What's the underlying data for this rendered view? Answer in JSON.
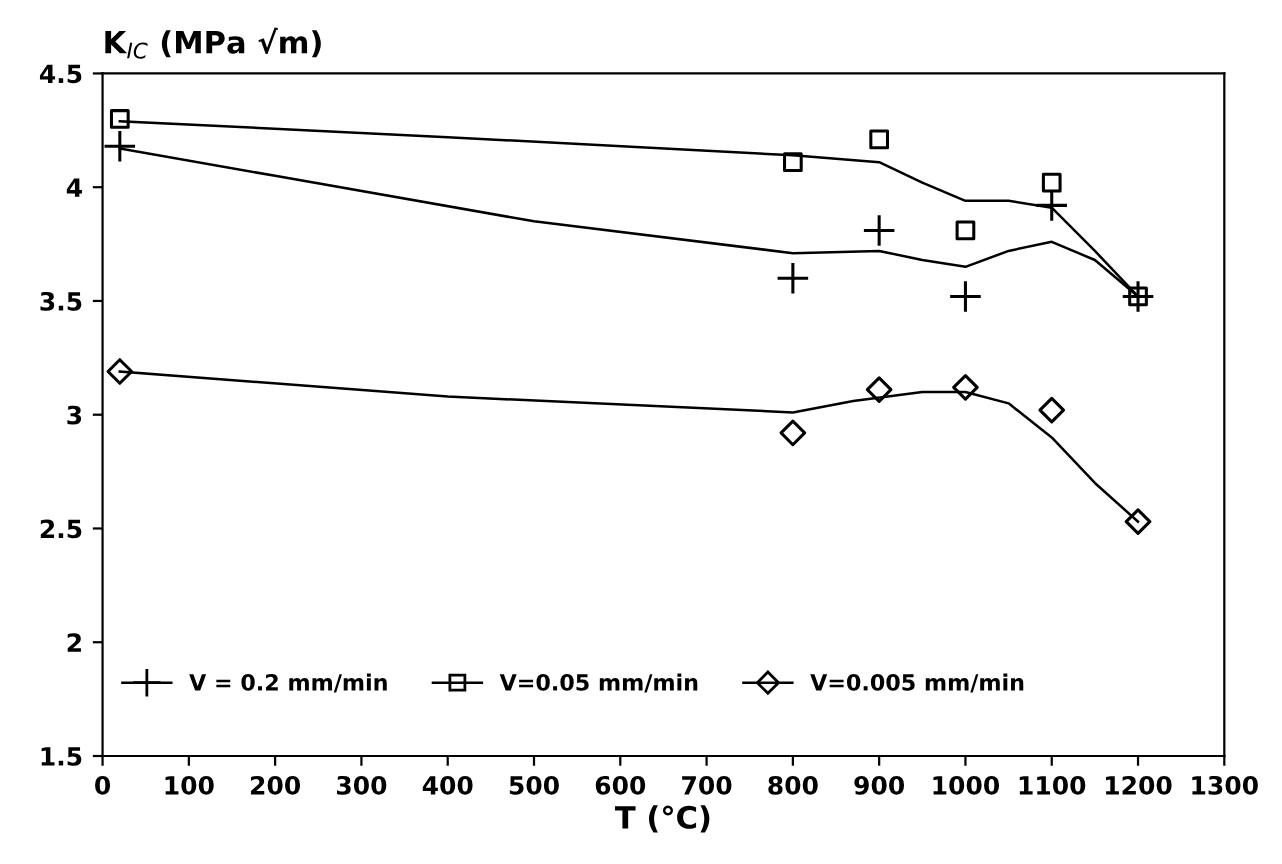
{
  "chart_data": {
    "type": "scatter",
    "ylabel": "K$_{IC}$ (MPa √m)",
    "xlabel": "T (°C)",
    "xlim": [
      0,
      1300
    ],
    "xticks": [
      0,
      100,
      200,
      300,
      400,
      500,
      600,
      700,
      800,
      900,
      1000,
      1100,
      1200,
      1300
    ],
    "ylim": [
      1.5,
      4.5
    ],
    "yticks": [
      1.5,
      2,
      2.5,
      3,
      3.5,
      4,
      4.5
    ],
    "grid": false,
    "legend": "bottom",
    "series": [
      {
        "name": "V = 0.2 mm/min",
        "marker": "cross",
        "color": "#000000",
        "x": [
          20,
          800,
          900,
          1000,
          1100,
          1200
        ],
        "values": [
          4.18,
          3.6,
          3.81,
          3.52,
          3.92,
          3.52
        ]
      },
      {
        "name": "V=0.05 mm/min",
        "marker": "square",
        "color": "#000000",
        "x": [
          20,
          800,
          900,
          1000,
          1100,
          1200
        ],
        "values": [
          4.3,
          4.11,
          4.21,
          3.81,
          4.02,
          3.52
        ]
      },
      {
        "name": "V=0.005 mm/min",
        "marker": "diamond",
        "color": "#000000",
        "x": [
          20,
          800,
          900,
          1000,
          1100,
          1200
        ],
        "values": [
          3.19,
          2.92,
          3.11,
          3.12,
          3.02,
          2.53
        ]
      },
      {
        "type": "line",
        "marker": "none",
        "color": "#000000",
        "x": [
          20,
          200,
          500,
          800,
          900,
          950,
          1000,
          1050,
          1100,
          1150,
          1200
        ],
        "values": [
          4.17,
          4.05,
          3.85,
          3.71,
          3.72,
          3.68,
          3.65,
          3.72,
          3.76,
          3.68,
          3.52
        ]
      },
      {
        "type": "line",
        "marker": "none",
        "color": "#000000",
        "x": [
          20,
          400,
          800,
          900,
          950,
          1000,
          1050,
          1100,
          1150,
          1200
        ],
        "values": [
          4.29,
          4.22,
          4.14,
          4.11,
          4.02,
          3.94,
          3.94,
          3.91,
          3.72,
          3.52
        ]
      },
      {
        "type": "line",
        "marker": "none",
        "color": "#000000",
        "x": [
          20,
          400,
          800,
          870,
          950,
          1000,
          1050,
          1100,
          1150,
          1200
        ],
        "values": [
          3.19,
          3.08,
          3.01,
          3.06,
          3.1,
          3.1,
          3.05,
          2.9,
          2.7,
          2.53
        ]
      }
    ]
  }
}
